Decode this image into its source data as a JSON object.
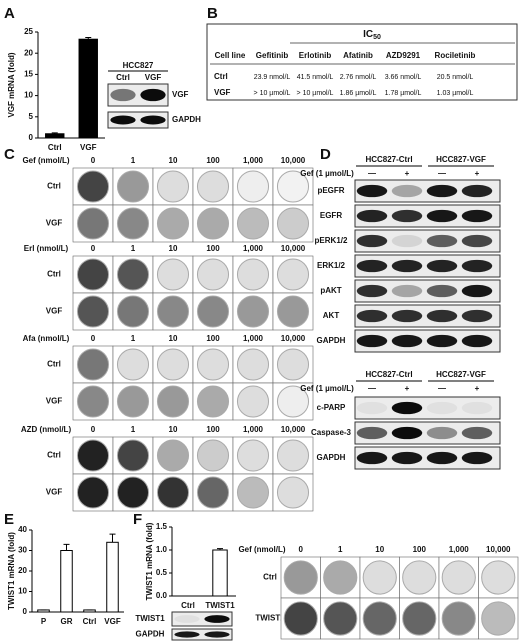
{
  "panels": [
    "A",
    "B",
    "C",
    "D",
    "E",
    "F"
  ],
  "chart_data": [
    {
      "type": "bar",
      "y_label": "VGF mRNA (fold)",
      "categories": [
        "Ctrl",
        "VGF"
      ],
      "values": [
        1,
        23.3
      ],
      "errors": [
        0.2,
        0.4
      ],
      "color": "#000000",
      "ylim": [
        0,
        25
      ],
      "yticks": [
        0,
        5,
        10,
        15,
        20,
        25
      ]
    },
    {
      "type": "bar",
      "y_label": "TWIST1 mRNA (fold)",
      "categories": [
        "P",
        "GR",
        "Ctrl",
        "VGF"
      ],
      "values": [
        1,
        30,
        1,
        34
      ],
      "errors": [
        0,
        3,
        0,
        4
      ],
      "color": "#ffffff",
      "ylim": [
        0,
        40
      ],
      "yticks": [
        0,
        10,
        20,
        30,
        40
      ]
    },
    {
      "type": "bar",
      "y_label": "TWIST1 mRNA (fold)",
      "categories": [
        "Ctrl",
        "TWIST1"
      ],
      "values": [
        0,
        1.0
      ],
      "errors": [
        0,
        0.03
      ],
      "color": "#ffffff",
      "ylim": [
        0,
        1.5
      ],
      "yticks": [
        {
          "value": 0,
          "label": "0.0"
        },
        {
          "value": 0.5,
          "label": "0.5"
        },
        {
          "value": 1,
          "label": "1.0"
        },
        {
          "value": 1.5,
          "label": "1.5"
        }
      ]
    }
  ],
  "blot_a": {
    "header": "HCC827",
    "lanes": [
      "Ctrl",
      "VGF"
    ],
    "bands": [
      "VGF",
      "GAPDH"
    ]
  },
  "table_b": {
    "title": "IC",
    "title_sub": "50",
    "columns": [
      "Cell line",
      "Gefitinib",
      "Erlotinib",
      "Afatinib",
      "AZD9291",
      "Rociletinib"
    ],
    "rows": [
      [
        "Ctrl",
        "23.9 nmol/L",
        "41.5 nmol/L",
        "2.76 nmol/L",
        "3.66 nmol/L",
        "20.5 nmol/L"
      ],
      [
        "VGF",
        "> 10 µmol/L",
        "> 10 µmol/L",
        "1.86 µmol/L",
        "1.78 µmol/L",
        "1.03 µmol/L"
      ]
    ]
  },
  "colony_c": [
    {
      "treatment": "Gef (nmol/L)",
      "doses": [
        "0",
        "1",
        "10",
        "100",
        "1,000",
        "10,000"
      ],
      "rows": [
        "Ctrl",
        "VGF"
      ]
    },
    {
      "treatment": "Erl (nmol/L)",
      "doses": [
        "0",
        "1",
        "10",
        "100",
        "1,000",
        "10,000"
      ],
      "rows": [
        "Ctrl",
        "VGF"
      ]
    },
    {
      "treatment": "Afa (nmol/L)",
      "doses": [
        "0",
        "1",
        "10",
        "100",
        "1,000",
        "10,000"
      ],
      "rows": [
        "Ctrl",
        "VGF"
      ]
    },
    {
      "treatment": "AZD (nmol/L)",
      "doses": [
        "0",
        "1",
        "10",
        "100",
        "1,000",
        "10,000"
      ],
      "rows": [
        "Ctrl",
        "VGF"
      ]
    }
  ],
  "blots_d": [
    {
      "groups": [
        "HCC827-Ctrl",
        "HCC827-VGF"
      ],
      "treatment": "Gef (1 µmol/L)",
      "signs": [
        "—",
        "+",
        "—",
        "+"
      ],
      "bands": [
        "pEGFR",
        "EGFR",
        "pERK1/2",
        "ERK1/2",
        "pAKT",
        "AKT",
        "GAPDH"
      ]
    },
    {
      "groups": [
        "HCC827-Ctrl",
        "HCC827-VGF"
      ],
      "treatment": "Gef (1 µmol/L)",
      "signs": [
        "—",
        "+",
        "—",
        "+"
      ],
      "bands": [
        "c-PARP",
        "Caspase-3",
        "GAPDH"
      ]
    }
  ],
  "blot_f": {
    "bands": [
      "TWIST1",
      "GAPDH"
    ]
  },
  "colony_f": {
    "treatment": "Gef (nmol/L)",
    "doses": [
      "0",
      "1",
      "10",
      "100",
      "1,000",
      "10,000"
    ],
    "rows": [
      "Ctrl",
      "TWIST1"
    ]
  }
}
